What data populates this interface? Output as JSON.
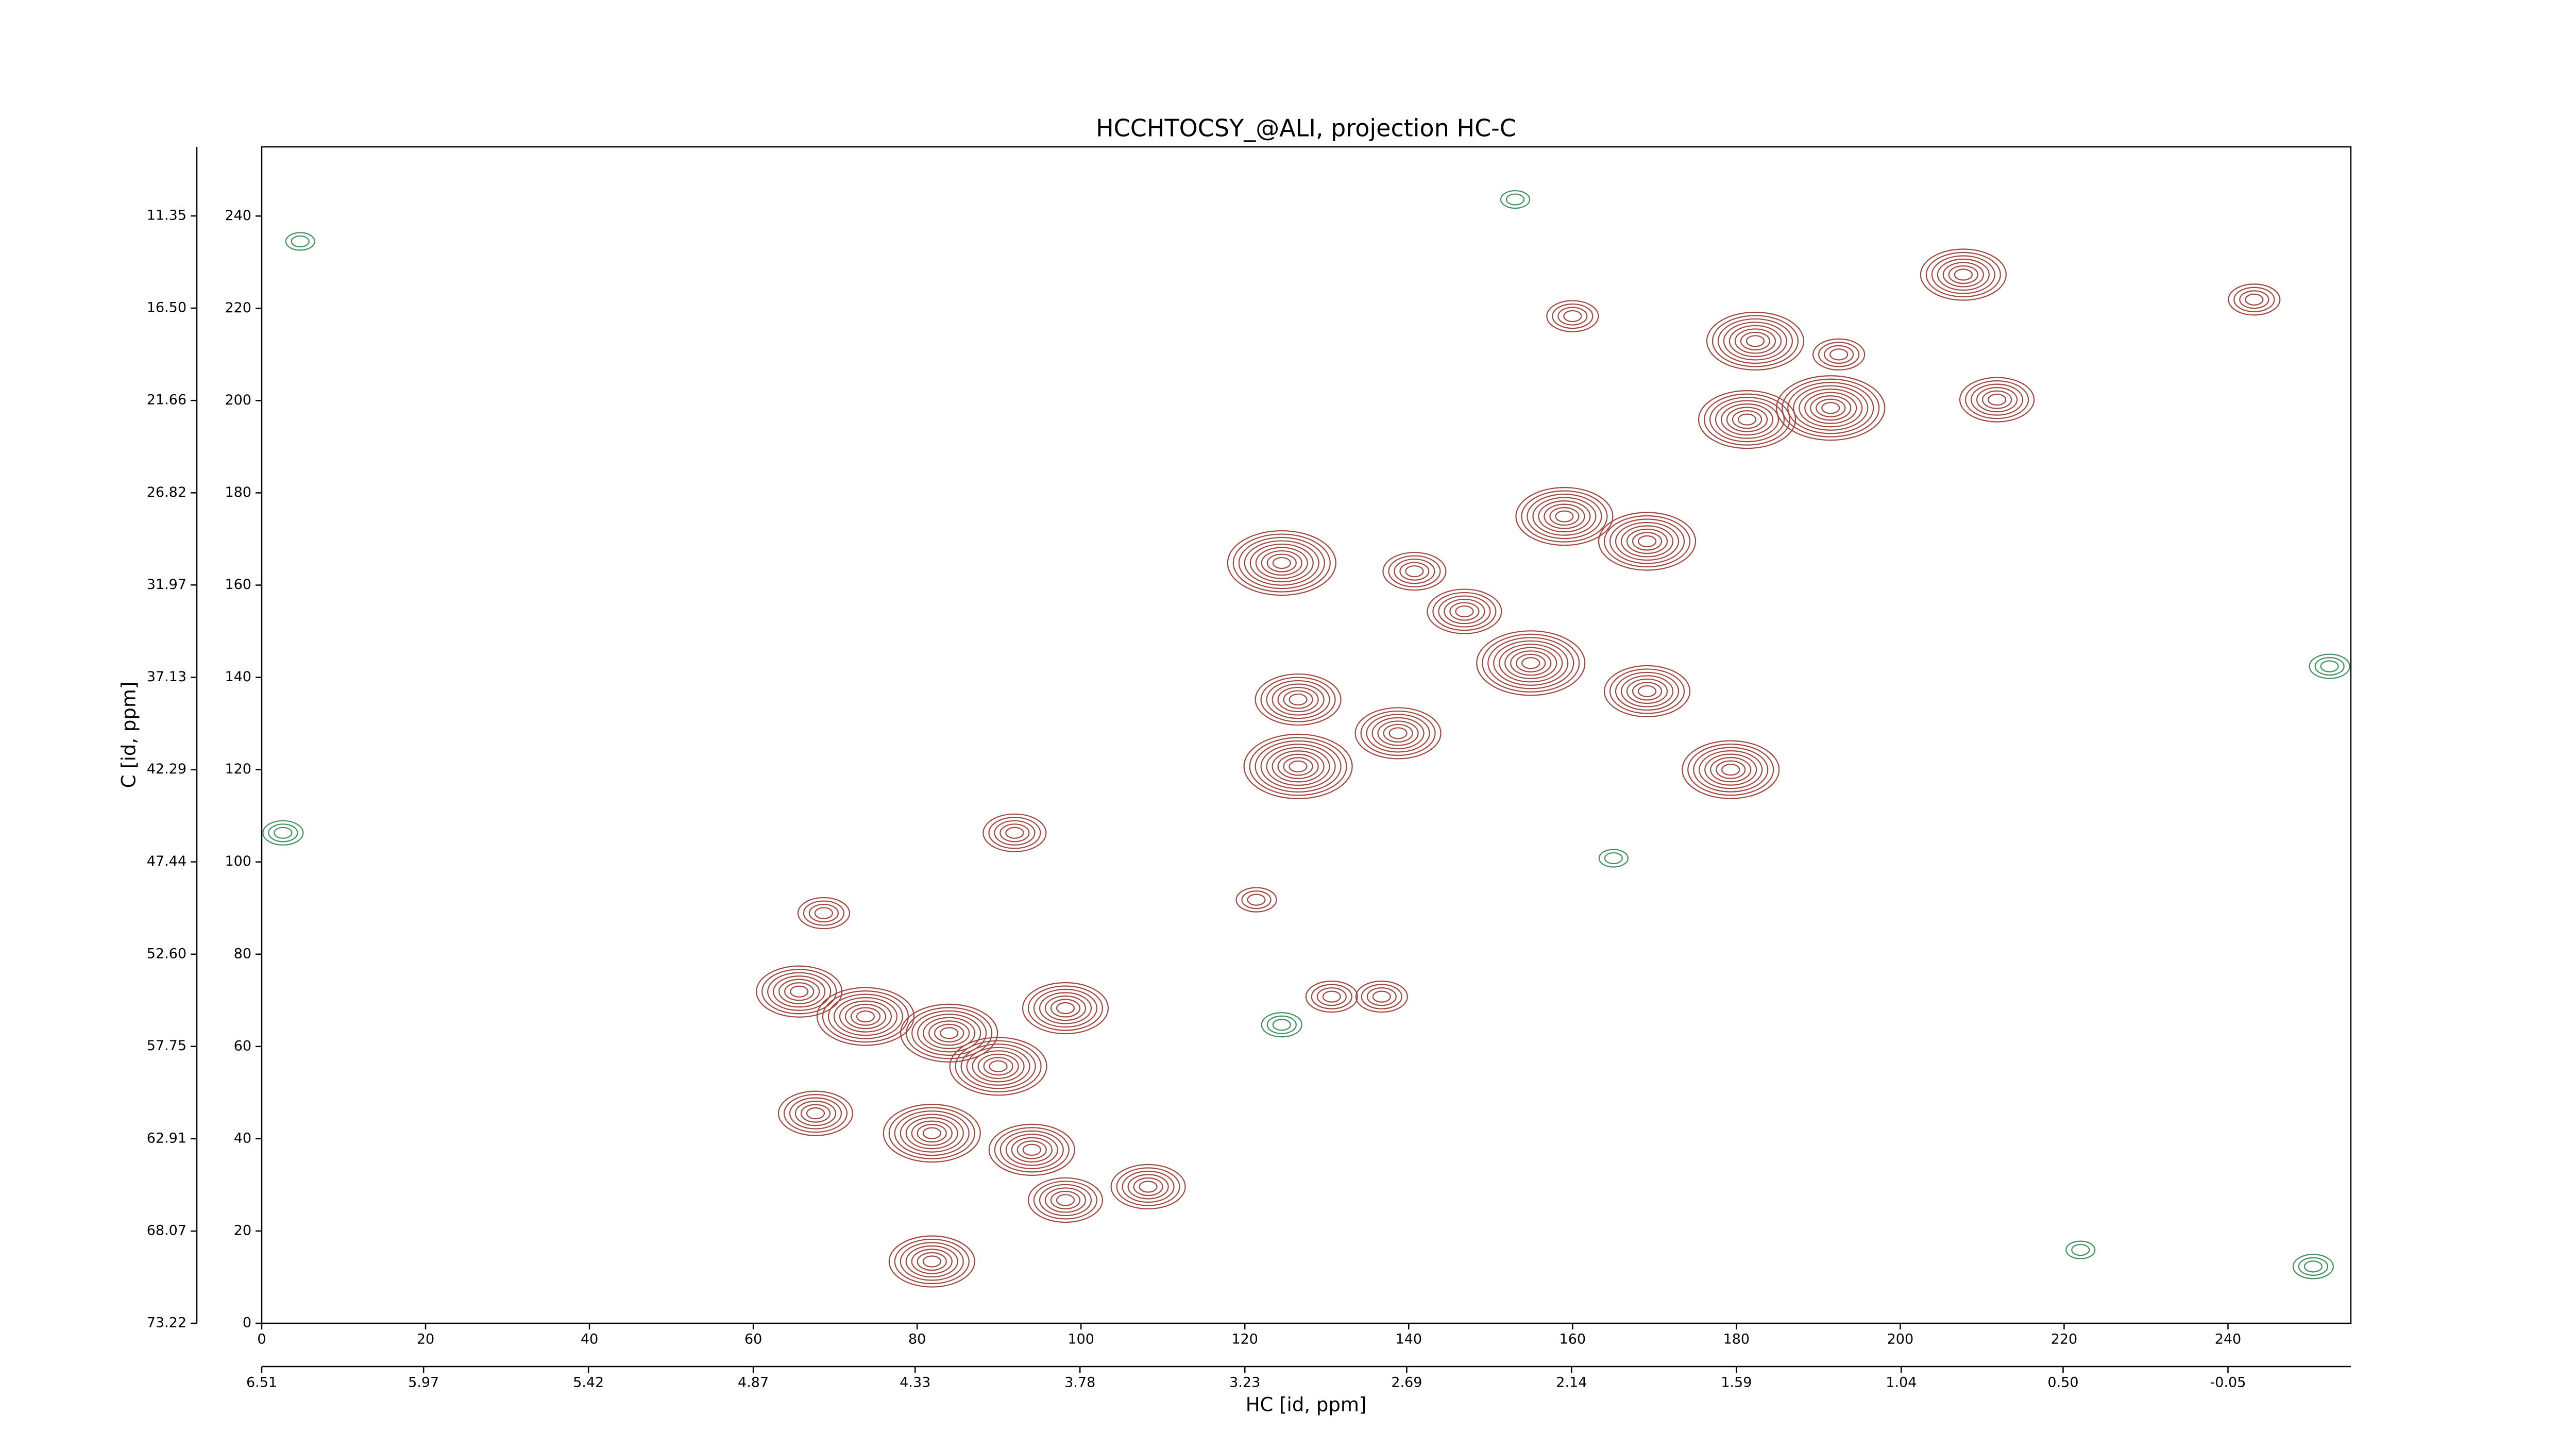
{
  "chart_data": {
    "type": "contour",
    "title": "HCCHTOCSY_@ALI, projection HC-C",
    "xlabel": "HC [id, ppm]",
    "ylabel": "C [id, ppm]",
    "xlim": [
      0,
      255
    ],
    "ylim": [
      0,
      255
    ],
    "xticks": [
      0,
      20,
      40,
      60,
      80,
      100,
      120,
      140,
      160,
      180,
      200,
      220,
      240
    ],
    "yticks": [
      0,
      20,
      40,
      60,
      80,
      100,
      120,
      140,
      160,
      180,
      200,
      220,
      240
    ],
    "x2lim": [
      6.51,
      -0.46
    ],
    "x2ticks": [
      6.51,
      5.97,
      5.42,
      4.87,
      4.33,
      3.78,
      3.23,
      2.69,
      2.14,
      1.59,
      1.04,
      {
        "value": 0.5,
        "label": "0.50"
      },
      -0.05
    ],
    "y2lim": [
      73.22,
      7.49
    ],
    "y2ticks": [
      73.22,
      68.07,
      62.91,
      57.75,
      {
        "value": 52.6,
        "label": "52.60"
      },
      47.44,
      42.29,
      37.13,
      31.97,
      26.82,
      21.66,
      {
        "value": 16.5,
        "label": "16.50"
      },
      11.35
    ],
    "series": [
      {
        "color": "#a0463e",
        "x": [
          124.5,
          181.3,
          191.5,
          207.7,
          182.3,
          159,
          169.1,
          146.8,
          154.9,
          140.7,
          126.5,
          126.5,
          138.7,
          179.3,
          169.1,
          65.6,
          73.7,
          83.9,
          98.1,
          89.9,
          67.6,
          81.8,
          94,
          98.1,
          108.2,
          81.8,
          68.6,
          91.9,
          121.4,
          130.6,
          136.7,
          243.2,
          160,
          192.5,
          211.8
        ],
        "y": [
          164.8,
          195.9,
          198.4,
          227.3,
          212.9,
          174.9,
          169.5,
          154.3,
          143.1,
          163,
          120.7,
          135.2,
          127.9,
          120,
          137,
          71.9,
          66.5,
          62.9,
          68.3,
          55.7,
          45.5,
          41.2,
          37.6,
          26.7,
          29.6,
          13.4,
          88.9,
          106.3,
          91.8,
          70.8,
          70.8,
          221.9,
          218.3,
          210,
          200.2
        ],
        "levels": [
          9,
          8,
          9,
          7,
          8,
          8,
          8,
          6,
          9,
          5,
          9,
          7,
          7,
          8,
          7,
          7,
          8,
          8,
          7,
          8,
          6,
          8,
          7,
          6,
          6,
          7,
          4,
          5,
          3,
          4,
          4,
          4,
          4,
          4,
          6
        ]
      },
      {
        "color": "#3f8f5a",
        "x": [
          252.4,
          2.6,
          165,
          124.5,
          4.7,
          153,
          222,
          250.4
        ],
        "y": [
          142.4,
          106.3,
          100.8,
          64.7,
          234.5,
          243.6,
          15.9,
          12.3
        ],
        "levels": [
          3,
          3,
          2,
          3,
          2,
          2,
          2,
          3
        ]
      }
    ]
  }
}
